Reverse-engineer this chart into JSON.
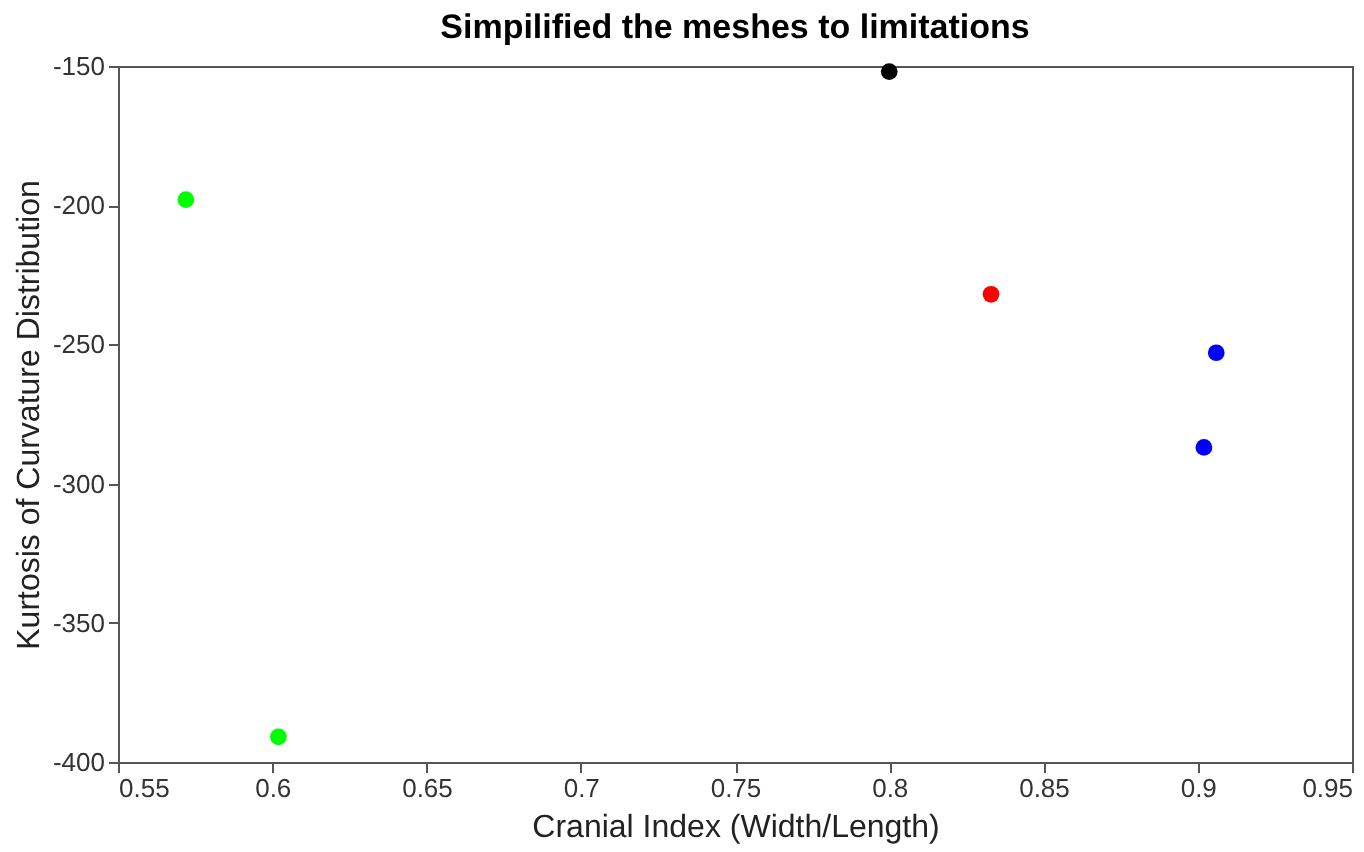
{
  "chart_data": {
    "type": "scatter",
    "title": "Simpilified the meshes to limitations",
    "xlabel": "Cranial Index (Width/Length)",
    "ylabel": "Kurtosis of Curvature Distribution",
    "xlim": [
      0.55,
      0.95
    ],
    "xticks": [
      0.55,
      0.6,
      0.65,
      0.7,
      0.75,
      0.8,
      0.85,
      0.9,
      0.95
    ],
    "ylim": [
      -400,
      -150
    ],
    "yticks": [
      -400,
      -350,
      -300,
      -250,
      -200,
      -150
    ],
    "grid": false,
    "legend": false,
    "marker": "circle",
    "series": [
      {
        "color": "#00ff00",
        "x": [
          0.572,
          0.602
        ],
        "values": [
          -198,
          -391
        ]
      },
      {
        "color": "#000000",
        "x": [
          0.8
        ],
        "values": [
          -152
        ]
      },
      {
        "color": "#ff0000",
        "x": [
          0.833
        ],
        "values": [
          -232
        ]
      },
      {
        "color": "#0000ff",
        "x": [
          0.906,
          0.902
        ],
        "values": [
          -253,
          -287
        ]
      }
    ]
  }
}
